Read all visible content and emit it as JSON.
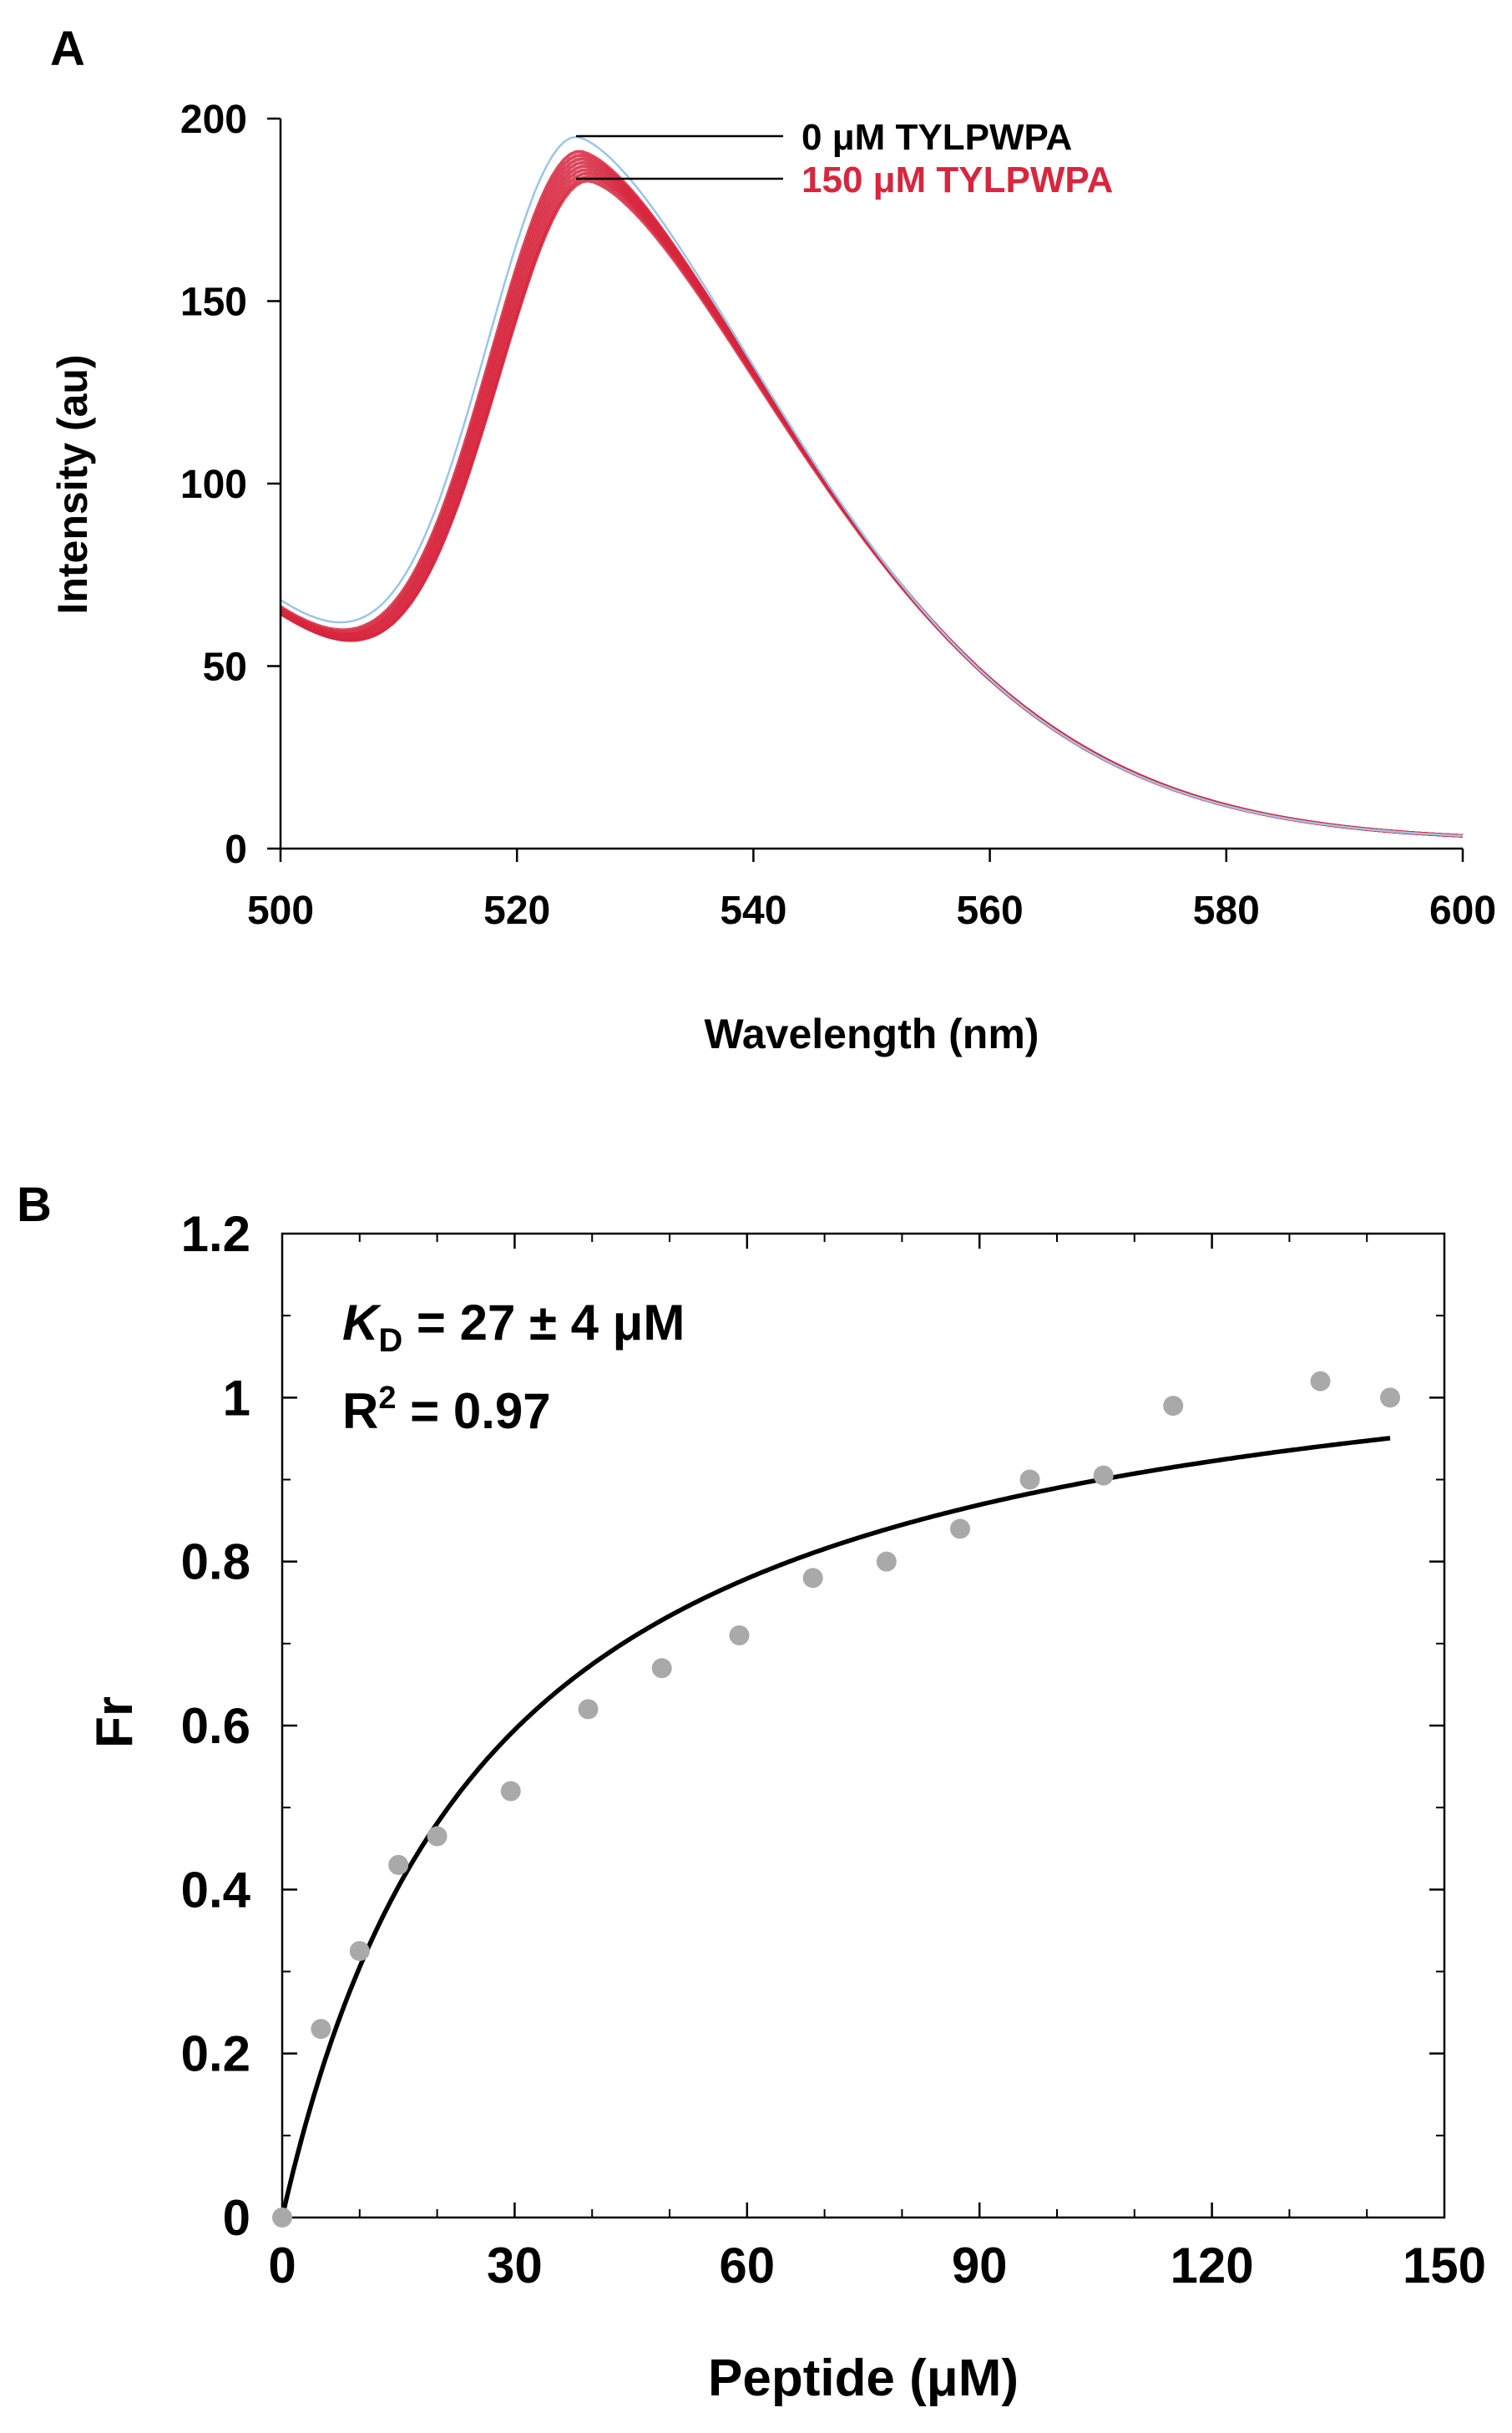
{
  "panels": {
    "a_label": "A",
    "b_label": "B"
  },
  "chart_data": [
    {
      "type": "line",
      "xlabel": "Wavelength (nm)",
      "ylabel": "Intensity (au)",
      "xlim": [
        500,
        600
      ],
      "ylim": [
        0,
        200
      ],
      "xticks": [
        "500",
        "520",
        "540",
        "560",
        "580",
        "600"
      ],
      "yticks": [
        "0",
        "50",
        "100",
        "150",
        "200"
      ],
      "grid": false,
      "annotations": {
        "top": {
          "text": "0 μM TYLPWPA",
          "color": "#000000"
        },
        "bottom": {
          "text": "150 μM TYLPWPA",
          "color": "#d7263d"
        }
      },
      "colors": {
        "reference": "#9cc5e8",
        "titration": "#d7263d"
      },
      "series": [
        {
          "peak_wavelength": 525,
          "peak_intensity": 195,
          "start_intensity": 69,
          "color": "#9cc5e8"
        },
        {
          "peak_wavelength": 525.3,
          "peak_intensity": 191,
          "start_intensity": 67,
          "color": "#d7263d"
        },
        {
          "peak_wavelength": 525.4,
          "peak_intensity": 190,
          "start_intensity": 66.5,
          "color": "#d7263d"
        },
        {
          "peak_wavelength": 525.5,
          "peak_intensity": 189,
          "start_intensity": 66,
          "color": "#d7263d"
        },
        {
          "peak_wavelength": 525.6,
          "peak_intensity": 188,
          "start_intensity": 66,
          "color": "#d7263d"
        },
        {
          "peak_wavelength": 525.7,
          "peak_intensity": 187,
          "start_intensity": 65.5,
          "color": "#d7263d"
        },
        {
          "peak_wavelength": 525.8,
          "peak_intensity": 186,
          "start_intensity": 65.5,
          "color": "#d7263d"
        },
        {
          "peak_wavelength": 525.9,
          "peak_intensity": 185,
          "start_intensity": 65,
          "color": "#d7263d"
        },
        {
          "peak_wavelength": 526,
          "peak_intensity": 184,
          "start_intensity": 65,
          "color": "#d7263d"
        },
        {
          "peak_wavelength": 526,
          "peak_intensity": 183,
          "start_intensity": 65,
          "color": "#d7263d"
        }
      ]
    },
    {
      "type": "scatter",
      "xlabel": "Peptide (μM)",
      "ylabel": "Fr",
      "xlim": [
        0,
        150
      ],
      "ylim": [
        0,
        1.2
      ],
      "xticks": [
        "0",
        "30",
        "60",
        "90",
        "120",
        "150"
      ],
      "yticks": [
        "0",
        "0.2",
        "0.4",
        "0.6",
        "0.8",
        "1",
        "1.2"
      ],
      "grid": false,
      "stats": {
        "kd_symbol": "K",
        "kd_subscript": "D",
        "kd_text": " = 27 ± 4 μM",
        "r2_base": "R",
        "r2_sup": "2",
        "r2_text": " = 0.97"
      },
      "points": [
        {
          "x": 0,
          "y": 0.0
        },
        {
          "x": 5,
          "y": 0.23
        },
        {
          "x": 10,
          "y": 0.325
        },
        {
          "x": 15,
          "y": 0.43
        },
        {
          "x": 20,
          "y": 0.465
        },
        {
          "x": 29.5,
          "y": 0.52
        },
        {
          "x": 39.5,
          "y": 0.62
        },
        {
          "x": 49,
          "y": 0.67
        },
        {
          "x": 59,
          "y": 0.71
        },
        {
          "x": 68.5,
          "y": 0.78
        },
        {
          "x": 78,
          "y": 0.8
        },
        {
          "x": 87.5,
          "y": 0.84
        },
        {
          "x": 96.5,
          "y": 0.9
        },
        {
          "x": 106,
          "y": 0.905
        },
        {
          "x": 115,
          "y": 0.99
        },
        {
          "x": 134,
          "y": 1.02
        },
        {
          "x": 143,
          "y": 1.0
        }
      ],
      "fit": {
        "kd": 27,
        "fmax": 1.13,
        "x_end": 143
      },
      "colors": {
        "points": "#a9a9a9",
        "fit": "#000000"
      }
    }
  ]
}
